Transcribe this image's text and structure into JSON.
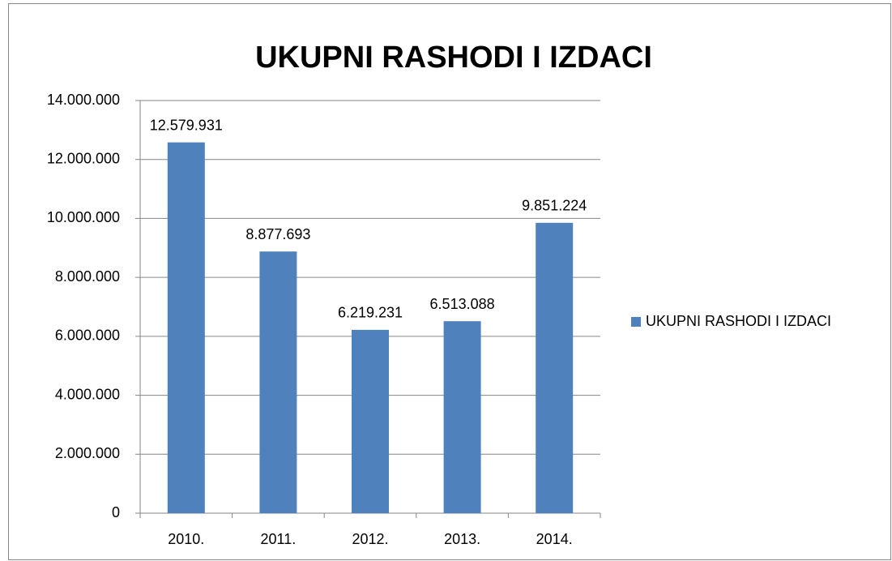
{
  "chart_data": {
    "type": "bar",
    "title": "UKUPNI RASHODI I IZDACI",
    "categories": [
      "2010.",
      "2011.",
      "2012.",
      "2013.",
      "2014."
    ],
    "series": [
      {
        "name": "UKUPNI RASHODI I IZDACI",
        "color": "#4f81bd",
        "values": [
          12579931,
          8877693,
          6219231,
          6513088,
          9851224
        ],
        "value_labels": [
          "12.579.931",
          "8.877.693",
          "6.219.231",
          "6.513.088",
          "9.851.224"
        ]
      }
    ],
    "ylim": [
      0,
      14000000
    ],
    "yticks": [
      0,
      {
        "value": 2000000,
        "label": "2.000.000"
      },
      {
        "value": 4000000,
        "label": "4.000.000"
      },
      {
        "value": 6000000,
        "label": "6.000.000"
      },
      {
        "value": 8000000,
        "label": "8.000.000"
      },
      {
        "value": 10000000,
        "label": "10.000.000"
      },
      {
        "value": 12000000,
        "label": "12.000.000"
      },
      {
        "value": 14000000,
        "label": "14.000.000"
      }
    ],
    "grid": true,
    "legend": "right"
  }
}
